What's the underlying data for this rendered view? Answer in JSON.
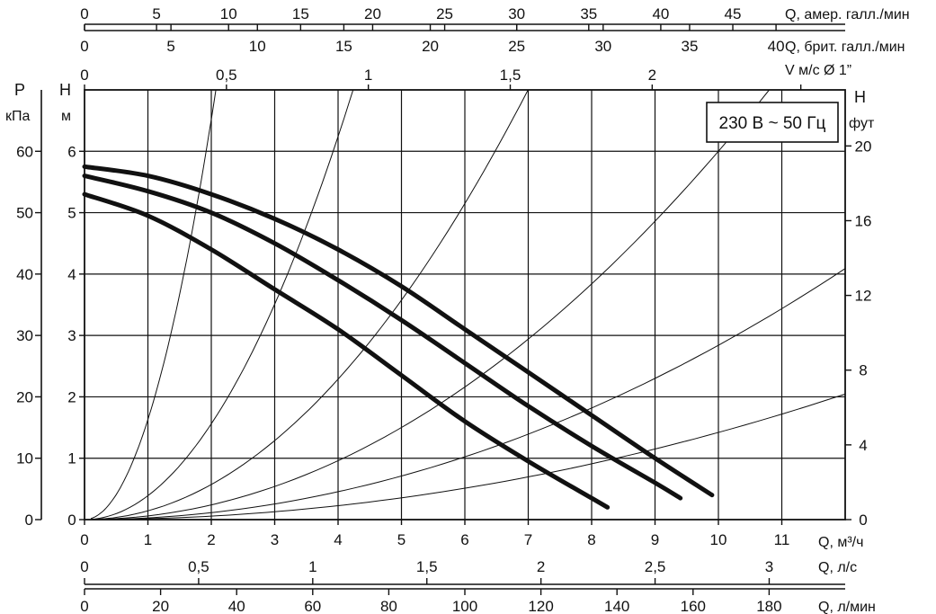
{
  "chart_data": {
    "type": "line",
    "annotation": "230 В ~ 50 Гц",
    "grid": true,
    "legend": "none",
    "axes": {
      "main_x": {
        "label": "Q, м³/ч",
        "range": [
          0,
          12
        ],
        "ticks": [
          "0",
          "1",
          "2",
          "3",
          "4",
          "5",
          "6",
          "7",
          "8",
          "9",
          "10",
          "11"
        ]
      },
      "ls_x": {
        "label": "Q, л/с",
        "range": [
          0,
          3.333
        ],
        "ticks": [
          "0",
          "0,5",
          "1",
          "1,5",
          "2",
          "2,5",
          "3"
        ],
        "tick_values": [
          0,
          0.5,
          1,
          1.5,
          2,
          2.5,
          3
        ]
      },
      "lmin_x": {
        "label": "Q, л/мин",
        "range": [
          0,
          200
        ],
        "ticks": [
          "0",
          "20",
          "40",
          "60",
          "80",
          "100",
          "120",
          "140",
          "160",
          "180"
        ],
        "tick_values": [
          0,
          20,
          40,
          60,
          80,
          100,
          120,
          140,
          160,
          180
        ]
      },
      "usgal_x": {
        "label": "Q, амер. галл./мин",
        "range": [
          0,
          52.8
        ],
        "ticks": [
          "0",
          "5",
          "10",
          "15",
          "20",
          "25",
          "30",
          "35",
          "40",
          "45"
        ],
        "tick_values": [
          0,
          5,
          10,
          15,
          20,
          25,
          30,
          35,
          40,
          45
        ]
      },
      "ukgal_x": {
        "label": "Q, брит. галл./мин",
        "range": [
          0,
          44
        ],
        "ticks": [
          "0",
          "5",
          "10",
          "15",
          "20",
          "25",
          "30",
          "35",
          "40"
        ],
        "tick_values": [
          0,
          5,
          10,
          15,
          20,
          25,
          30,
          35,
          40
        ]
      },
      "velocity_x": {
        "label": "V м/с Ø 1”",
        "range": [
          0,
          2.68
        ],
        "ticks": [
          "0",
          "0,5",
          "1",
          "1,5",
          "2"
        ],
        "tick_values": [
          0,
          0.5,
          1,
          1.5,
          2
        ]
      },
      "head_m_y": {
        "label_top": "H",
        "label_unit": "м",
        "range": [
          0,
          7
        ],
        "ticks": [
          "0",
          "1",
          "2",
          "3",
          "4",
          "5",
          "6"
        ]
      },
      "pressure_y": {
        "label_top": "P",
        "label_unit": "кПа",
        "range": [
          0,
          70
        ],
        "ticks": [
          "0",
          "10",
          "20",
          "30",
          "40",
          "50",
          "60"
        ],
        "tick_values": [
          0,
          10,
          20,
          30,
          40,
          50,
          60
        ]
      },
      "head_ft_y": {
        "label_top": "H",
        "label_unit": "фут",
        "range": [
          0,
          23
        ],
        "ticks": [
          "0",
          "4",
          "8",
          "12",
          "16",
          "20"
        ],
        "tick_values": [
          0,
          4,
          8,
          12,
          16,
          20
        ]
      }
    },
    "series": [
      {
        "x": [
          0,
          1,
          2,
          3,
          4,
          5,
          6,
          7,
          8,
          9,
          9.9
        ],
        "y": [
          5.75,
          5.6,
          5.3,
          4.9,
          4.4,
          3.8,
          3.1,
          2.4,
          1.7,
          1.0,
          0.4
        ]
      },
      {
        "x": [
          0,
          1,
          2,
          3,
          4,
          5,
          6,
          7,
          8,
          9,
          9.4
        ],
        "y": [
          5.6,
          5.35,
          5.0,
          4.5,
          3.9,
          3.25,
          2.55,
          1.85,
          1.2,
          0.6,
          0.35
        ]
      },
      {
        "x": [
          0,
          1,
          2,
          3,
          4,
          5,
          6,
          7,
          8,
          8.25
        ],
        "y": [
          5.3,
          4.95,
          4.4,
          3.75,
          3.1,
          2.35,
          1.6,
          0.95,
          0.35,
          0.2
        ]
      }
    ],
    "system_curves": [
      {
        "k": 1.63
      },
      {
        "k": 0.39
      },
      {
        "k": 0.143
      },
      {
        "k": 0.06
      },
      {
        "k": 0.0284
      },
      {
        "k": 0.0142
      }
    ]
  }
}
